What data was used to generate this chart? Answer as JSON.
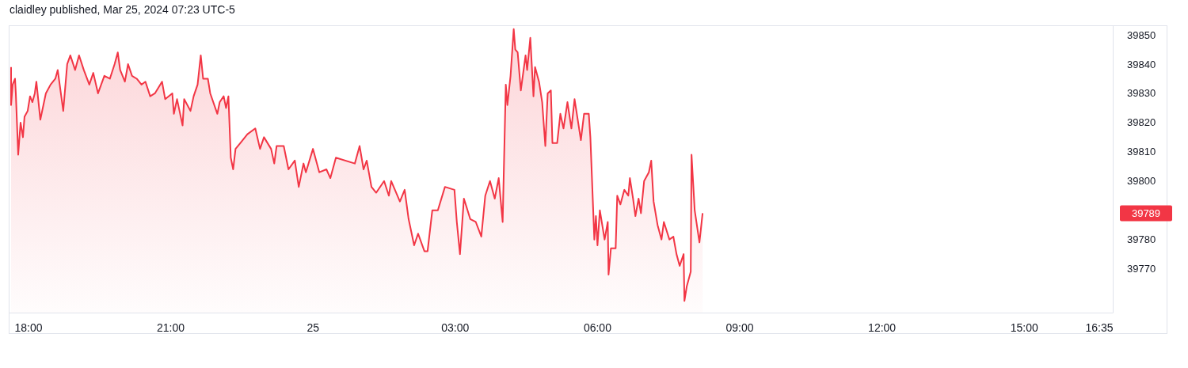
{
  "chart_data": {
    "type": "area",
    "title": "claidley published, Mar 25, 2024 07:23 UTC-5",
    "x": [
      "2024-03-24T17:38",
      "2024-03-24T17:38",
      "2024-03-24T17:40",
      "2024-03-24T17:43",
      "2024-03-24T17:44",
      "2024-03-24T17:47",
      "2024-03-24T17:50",
      "2024-03-24T17:53",
      "2024-03-24T17:55",
      "2024-03-24T17:59",
      "2024-03-24T18:02",
      "2024-03-24T18:05",
      "2024-03-24T18:08",
      "2024-03-24T18:10",
      "2024-03-24T18:15",
      "2024-03-24T18:22",
      "2024-03-24T18:28",
      "2024-03-24T18:34",
      "2024-03-24T18:37",
      "2024-03-24T18:44",
      "2024-03-24T18:49",
      "2024-03-24T18:53",
      "2024-03-24T18:59",
      "2024-03-24T19:04",
      "2024-03-24T19:10",
      "2024-03-24T19:17",
      "2024-03-24T19:22",
      "2024-03-24T19:28",
      "2024-03-24T19:36",
      "2024-03-24T19:43",
      "2024-03-24T19:49",
      "2024-03-24T19:53",
      "2024-03-24T19:56",
      "2024-03-24T20:02",
      "2024-03-24T20:06",
      "2024-03-24T20:11",
      "2024-03-24T20:17",
      "2024-03-24T20:23",
      "2024-03-24T20:28",
      "2024-03-24T20:34",
      "2024-03-24T20:40",
      "2024-03-24T20:49",
      "2024-03-24T20:53",
      "2024-03-24T21:02",
      "2024-03-24T21:04",
      "2024-03-24T21:08",
      "2024-03-24T21:15",
      "2024-03-24T21:17",
      "2024-03-24T21:25",
      "2024-03-24T21:29",
      "2024-03-24T21:34",
      "2024-03-24T21:38",
      "2024-03-24T21:41",
      "2024-03-24T21:47",
      "2024-03-24T21:50",
      "2024-03-24T21:59",
      "2024-03-24T22:02",
      "2024-03-24T22:07",
      "2024-03-24T22:10",
      "2024-03-24T22:13",
      "2024-03-24T22:16",
      "2024-03-24T22:19",
      "2024-03-24T22:22",
      "2024-03-24T22:28",
      "2024-03-24T22:37",
      "2024-03-24T22:47",
      "2024-03-24T22:53",
      "2024-03-24T22:58",
      "2024-03-24T23:07",
      "2024-03-24T23:11",
      "2024-03-24T23:14",
      "2024-03-24T23:23",
      "2024-03-24T23:29",
      "2024-03-24T23:37",
      "2024-03-24T23:42",
      "2024-03-24T23:48",
      "2024-03-24T23:51",
      "2024-03-25T00:00",
      "2024-03-25T00:08",
      "2024-03-25T00:17",
      "2024-03-25T00:22",
      "2024-03-25T00:29",
      "2024-03-25T00:53",
      "2024-03-25T00:59",
      "2024-03-25T01:04",
      "2024-03-25T01:08",
      "2024-03-25T01:14",
      "2024-03-25T01:20",
      "2024-03-25T01:30",
      "2024-03-25T01:36",
      "2024-03-25T01:39",
      "2024-03-25T01:50",
      "2024-03-25T01:56",
      "2024-03-25T02:01",
      "2024-03-25T02:08",
      "2024-03-25T02:13",
      "2024-03-25T02:21",
      "2024-03-25T02:25",
      "2024-03-25T02:31",
      "2024-03-25T02:38",
      "2024-03-25T02:47",
      "2024-03-25T02:59",
      "2024-03-25T03:02",
      "2024-03-25T03:06",
      "2024-03-25T03:11",
      "2024-03-25T03:19",
      "2024-03-25T03:26",
      "2024-03-25T03:33",
      "2024-03-25T03:38",
      "2024-03-25T03:44",
      "2024-03-25T03:50",
      "2024-03-25T03:55",
      "2024-03-25T04:00",
      "2024-03-25T04:04",
      "2024-03-25T04:06",
      "2024-03-25T04:10",
      "2024-03-25T04:14",
      "2024-03-25T04:16",
      "2024-03-25T04:19",
      "2024-03-25T04:23",
      "2024-03-25T04:29",
      "2024-03-25T04:31",
      "2024-03-25T04:35",
      "2024-03-25T04:39",
      "2024-03-25T04:41",
      "2024-03-25T04:46",
      "2024-03-25T04:50",
      "2024-03-25T04:54",
      "2024-03-25T04:57",
      "2024-03-25T05:01",
      "2024-03-25T05:03",
      "2024-03-25T05:09",
      "2024-03-25T05:13",
      "2024-03-25T05:17",
      "2024-03-25T05:22",
      "2024-03-25T05:27",
      "2024-03-25T05:31",
      "2024-03-25T05:39",
      "2024-03-25T05:43",
      "2024-03-25T05:49",
      "2024-03-25T05:51",
      "2024-03-25T05:56",
      "2024-03-25T05:58",
      "2024-03-25T06:00",
      "2024-03-25T06:03",
      "2024-03-25T06:09",
      "2024-03-25T06:13",
      "2024-03-25T06:14",
      "2024-03-25T06:17",
      "2024-03-25T06:23",
      "2024-03-25T06:25",
      "2024-03-25T06:29",
      "2024-03-25T06:34",
      "2024-03-25T06:39",
      "2024-03-25T06:41",
      "2024-03-25T06:45",
      "2024-03-25T06:48",
      "2024-03-25T06:52",
      "2024-03-25T06:55",
      "2024-03-25T06:59",
      "2024-03-25T07:05",
      "2024-03-25T07:08",
      "2024-03-25T07:11",
      "2024-03-25T07:16",
      "2024-03-25T07:21",
      "2024-03-25T07:24",
      "2024-03-25T07:31",
      "2024-03-25T07:36",
      "2024-03-25T07:40",
      "2024-03-25T07:44",
      "2024-03-25T07:49",
      "2024-03-25T07:50",
      "2024-03-25T07:53",
      "2024-03-25T07:58",
      "2024-03-25T07:59",
      "2024-03-25T08:03",
      "2024-03-25T08:09",
      "2024-03-25T08:13"
    ],
    "series": [
      {
        "color": "#f23645",
        "values": [
          39839,
          39826,
          39833,
          39835,
          39830,
          39809,
          39820,
          39815,
          39822,
          39824,
          39829,
          39827,
          39830,
          39834,
          39821,
          39830,
          39833,
          39835,
          39838,
          39824,
          39840,
          39843,
          39838,
          39843,
          39838,
          39833,
          39837,
          39830,
          39836,
          39835,
          39840,
          39844,
          39838,
          39834,
          39840,
          39836,
          39835,
          39833,
          39834,
          39829,
          39830,
          39834,
          39828,
          39830,
          39823,
          39828,
          39819,
          39828,
          39824,
          39829,
          39833,
          39843,
          39835,
          39835,
          39830,
          39823,
          39827,
          39829,
          39825,
          39829,
          39808,
          39804,
          39811,
          39813,
          39816,
          39818,
          39811,
          39815,
          39811,
          39806,
          39812,
          39812,
          39804,
          39807,
          39798,
          39806,
          39803,
          39811,
          39803,
          39804,
          39801,
          39808,
          39806,
          39812,
          39804,
          39807,
          39798,
          39796,
          39800,
          39795,
          39800,
          39793,
          39797,
          39787,
          39778,
          39782,
          39776,
          39776,
          39790,
          39790,
          39798,
          39797,
          39786,
          39775,
          39794,
          39787,
          39786,
          39781,
          39795,
          39800,
          39794,
          39801,
          39786,
          39833,
          39826,
          39836,
          39852,
          39845,
          39844,
          39831,
          39843,
          39838,
          39849,
          39829,
          39839,
          39834,
          39827,
          39812,
          39830,
          39831,
          39813,
          39813,
          39823,
          39818,
          39827,
          39818,
          39828,
          39814,
          39823,
          39823,
          39815,
          39780,
          39788,
          39778,
          39790,
          39780,
          39786,
          39768,
          39777,
          39777,
          39795,
          39792,
          39797,
          39795,
          39801,
          39794,
          39788,
          39794,
          39789,
          39800,
          39803,
          39807,
          39793,
          39785,
          39780,
          39786,
          39780,
          39781,
          39775,
          39771,
          39775,
          39759,
          39764,
          39769,
          39809,
          39790,
          39779,
          39789
        ]
      }
    ],
    "xlim": [
      "2024-03-24T17:36",
      "2024-03-25T16:52"
    ],
    "xticks": [
      {
        "value": "2024-03-24T18:00",
        "label": "18:00"
      },
      {
        "value": "2024-03-24T21:00",
        "label": "21:00"
      },
      {
        "value": "2024-03-25T00:00",
        "label": "25"
      },
      {
        "value": "2024-03-25T03:00",
        "label": "03:00"
      },
      {
        "value": "2024-03-25T06:00",
        "label": "06:00"
      },
      {
        "value": "2024-03-25T09:00",
        "label": "09:00"
      },
      {
        "value": "2024-03-25T12:00",
        "label": "12:00"
      },
      {
        "value": "2024-03-25T15:00",
        "label": "15:00"
      },
      {
        "value": "2024-03-25T16:35",
        "label": "16:35"
      }
    ],
    "ylim": [
      39755,
      39853
    ],
    "yticks": [
      39770,
      39780,
      39800,
      39810,
      39820,
      39830,
      39840,
      39850
    ],
    "annotations": [
      "39789"
    ]
  }
}
